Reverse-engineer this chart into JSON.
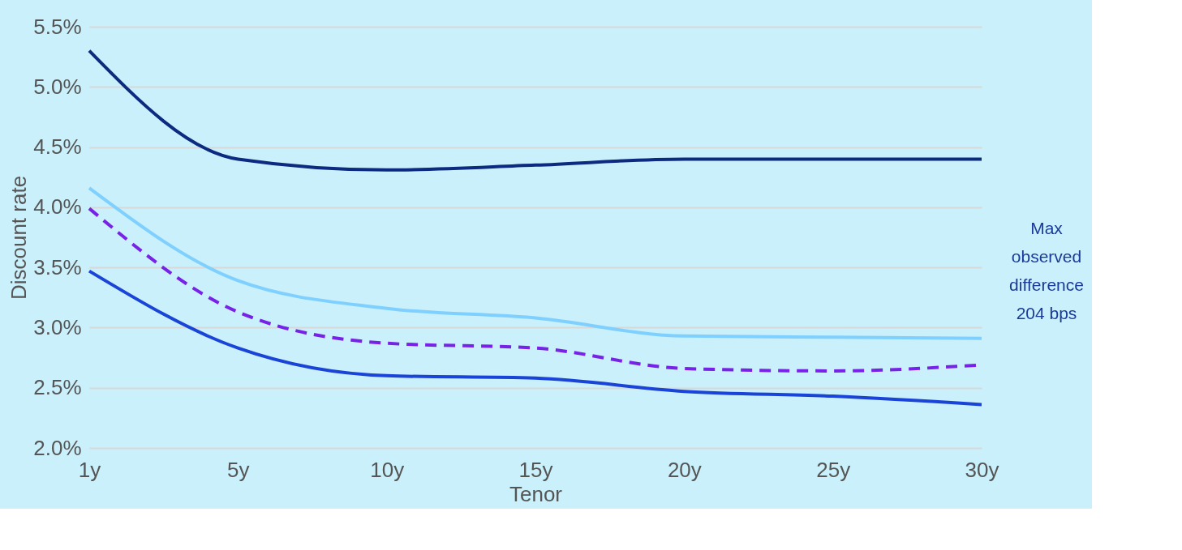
{
  "chart_data": {
    "type": "line",
    "xlabel": "Tenor",
    "ylabel": "Discount rate",
    "categories": [
      "1y",
      "5y",
      "10y",
      "15y",
      "20y",
      "25y",
      "30y"
    ],
    "series": [
      {
        "color": "#0b2a80",
        "values": [
          5.3,
          4.4,
          4.31,
          4.35,
          4.4,
          4.4,
          4.4
        ]
      },
      {
        "color": "#7fd0ff",
        "values": [
          4.16,
          3.39,
          3.16,
          3.08,
          2.93,
          2.92,
          2.91
        ]
      },
      {
        "color": "#7722e6",
        "line_style": "dashed",
        "values": [
          3.99,
          3.13,
          2.87,
          2.83,
          2.66,
          2.64,
          2.69
        ]
      },
      {
        "color": "#1a44d8",
        "values": [
          3.47,
          2.83,
          2.6,
          2.58,
          2.47,
          2.43,
          2.36
        ]
      }
    ],
    "ylim": [
      2.0,
      5.5
    ],
    "yticks": [
      {
        "value": 2.0,
        "label": "2.0%"
      },
      {
        "value": 2.5,
        "label": "2.5%"
      },
      {
        "value": 3.0,
        "label": "3.0%"
      },
      {
        "value": 3.5,
        "label": "3.5%"
      },
      {
        "value": 4.0,
        "label": "4.0%"
      },
      {
        "value": 4.5,
        "label": "4.5%"
      },
      {
        "value": 5.0,
        "label": "5.0%"
      },
      {
        "value": 5.5,
        "label": "5.5%"
      }
    ],
    "grid": "y",
    "annotations": [
      "Max observed difference 204 bps"
    ]
  }
}
